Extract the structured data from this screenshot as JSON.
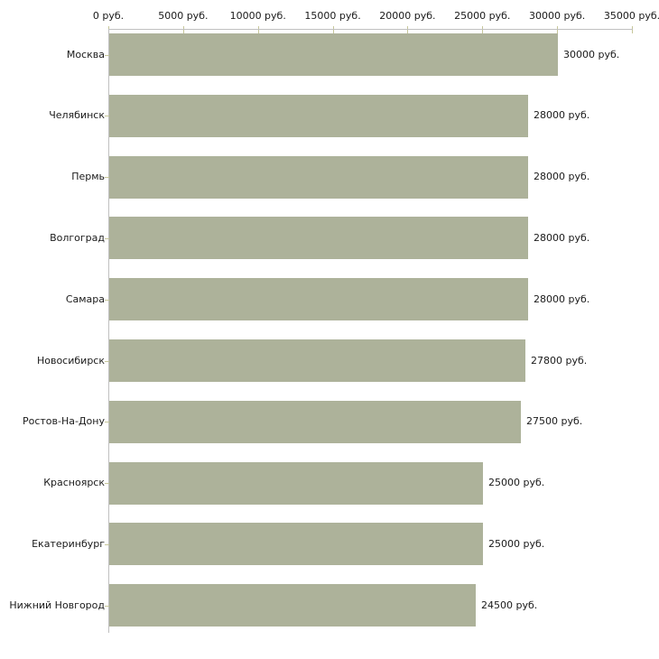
{
  "chart_data": {
    "type": "bar",
    "orientation": "horizontal",
    "unit": "руб.",
    "categories": [
      "Москва",
      "Челябинск",
      "Пермь",
      "Волгоград",
      "Самара",
      "Новосибирск",
      "Ростов-На-Дону",
      "Красноярск",
      "Екатеринбург",
      "Нижний Новгород"
    ],
    "values": [
      30000,
      28000,
      28000,
      28000,
      28000,
      27800,
      27500,
      25000,
      25000,
      24500
    ],
    "value_labels": [
      "30000 руб.",
      "28000 руб.",
      "28000 руб.",
      "28000 руб.",
      "28000 руб.",
      "27800 руб.",
      "27500 руб.",
      "25000 руб.",
      "25000 руб.",
      "24500 руб."
    ],
    "x_tick_values": [
      0,
      5000,
      10000,
      15000,
      20000,
      25000,
      30000,
      35000
    ],
    "x_tick_labels": [
      "0 руб.",
      "5000 руб.",
      "10000 руб.",
      "15000 руб.",
      "20000 руб.",
      "25000 руб.",
      "30000 руб.",
      "35000 руб."
    ],
    "xlim": [
      0,
      35000
    ],
    "grid": "off",
    "legend": "none",
    "title": "",
    "xlabel": "",
    "ylabel": "",
    "colors": {
      "bar": "#adb29a",
      "axis_line": "#c0c0c0",
      "tick_mark": "#c6c69a",
      "text": "#1a1a1a",
      "background": "#ffffff"
    }
  }
}
